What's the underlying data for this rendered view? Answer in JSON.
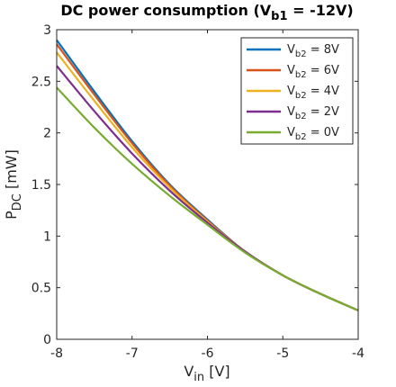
{
  "chart_data": {
    "type": "line",
    "title": {
      "main": "DC power consumption (V",
      "sub": "b1",
      "rest": " = -12V)"
    },
    "xlabel": {
      "main": "V",
      "sub": "in",
      "rest": " [V]"
    },
    "ylabel": {
      "main": "P",
      "sub": "DC",
      "rest": " [mW]"
    },
    "xlim": [
      -8,
      -4
    ],
    "ylim": [
      0,
      3
    ],
    "xticks": [
      -8,
      -7,
      -6,
      -5,
      -4
    ],
    "yticks": [
      0,
      0.5,
      1,
      1.5,
      2,
      2.5,
      3
    ],
    "xtick_labels": [
      "-8",
      "-7",
      "-6",
      "-5",
      "-4"
    ],
    "ytick_labels": [
      "0",
      "0.5",
      "1",
      "1.5",
      "2",
      "2.5",
      "3"
    ],
    "grid": false,
    "legend_position": "top-right",
    "x": [
      -8,
      -7.5,
      -7,
      -6.5,
      -6,
      -5.5,
      -5,
      -4.5,
      -4
    ],
    "series": [
      {
        "name": {
          "main": "V",
          "sub": "b2",
          "rest": " = 8V"
        },
        "color": "#0072BD",
        "values": [
          2.9,
          2.4,
          1.92,
          1.5,
          1.16,
          0.85,
          0.62,
          0.44,
          0.28
        ]
      },
      {
        "name": {
          "main": "V",
          "sub": "b2",
          "rest": " = 6V"
        },
        "color": "#D95319",
        "values": [
          2.86,
          2.37,
          1.9,
          1.49,
          1.15,
          0.85,
          0.62,
          0.44,
          0.28
        ]
      },
      {
        "name": {
          "main": "V",
          "sub": "b2",
          "rest": " = 4V"
        },
        "color": "#EDB120",
        "values": [
          2.78,
          2.31,
          1.86,
          1.47,
          1.14,
          0.85,
          0.62,
          0.44,
          0.28
        ]
      },
      {
        "name": {
          "main": "V",
          "sub": "b2",
          "rest": " = 2V"
        },
        "color": "#7E2F8E",
        "values": [
          2.65,
          2.21,
          1.8,
          1.44,
          1.13,
          0.85,
          0.62,
          0.44,
          0.28
        ]
      },
      {
        "name": {
          "main": "V",
          "sub": "b2",
          "rest": " = 0V"
        },
        "color": "#77AC30",
        "values": [
          2.44,
          2.05,
          1.7,
          1.39,
          1.11,
          0.84,
          0.62,
          0.44,
          0.28
        ]
      }
    ]
  }
}
